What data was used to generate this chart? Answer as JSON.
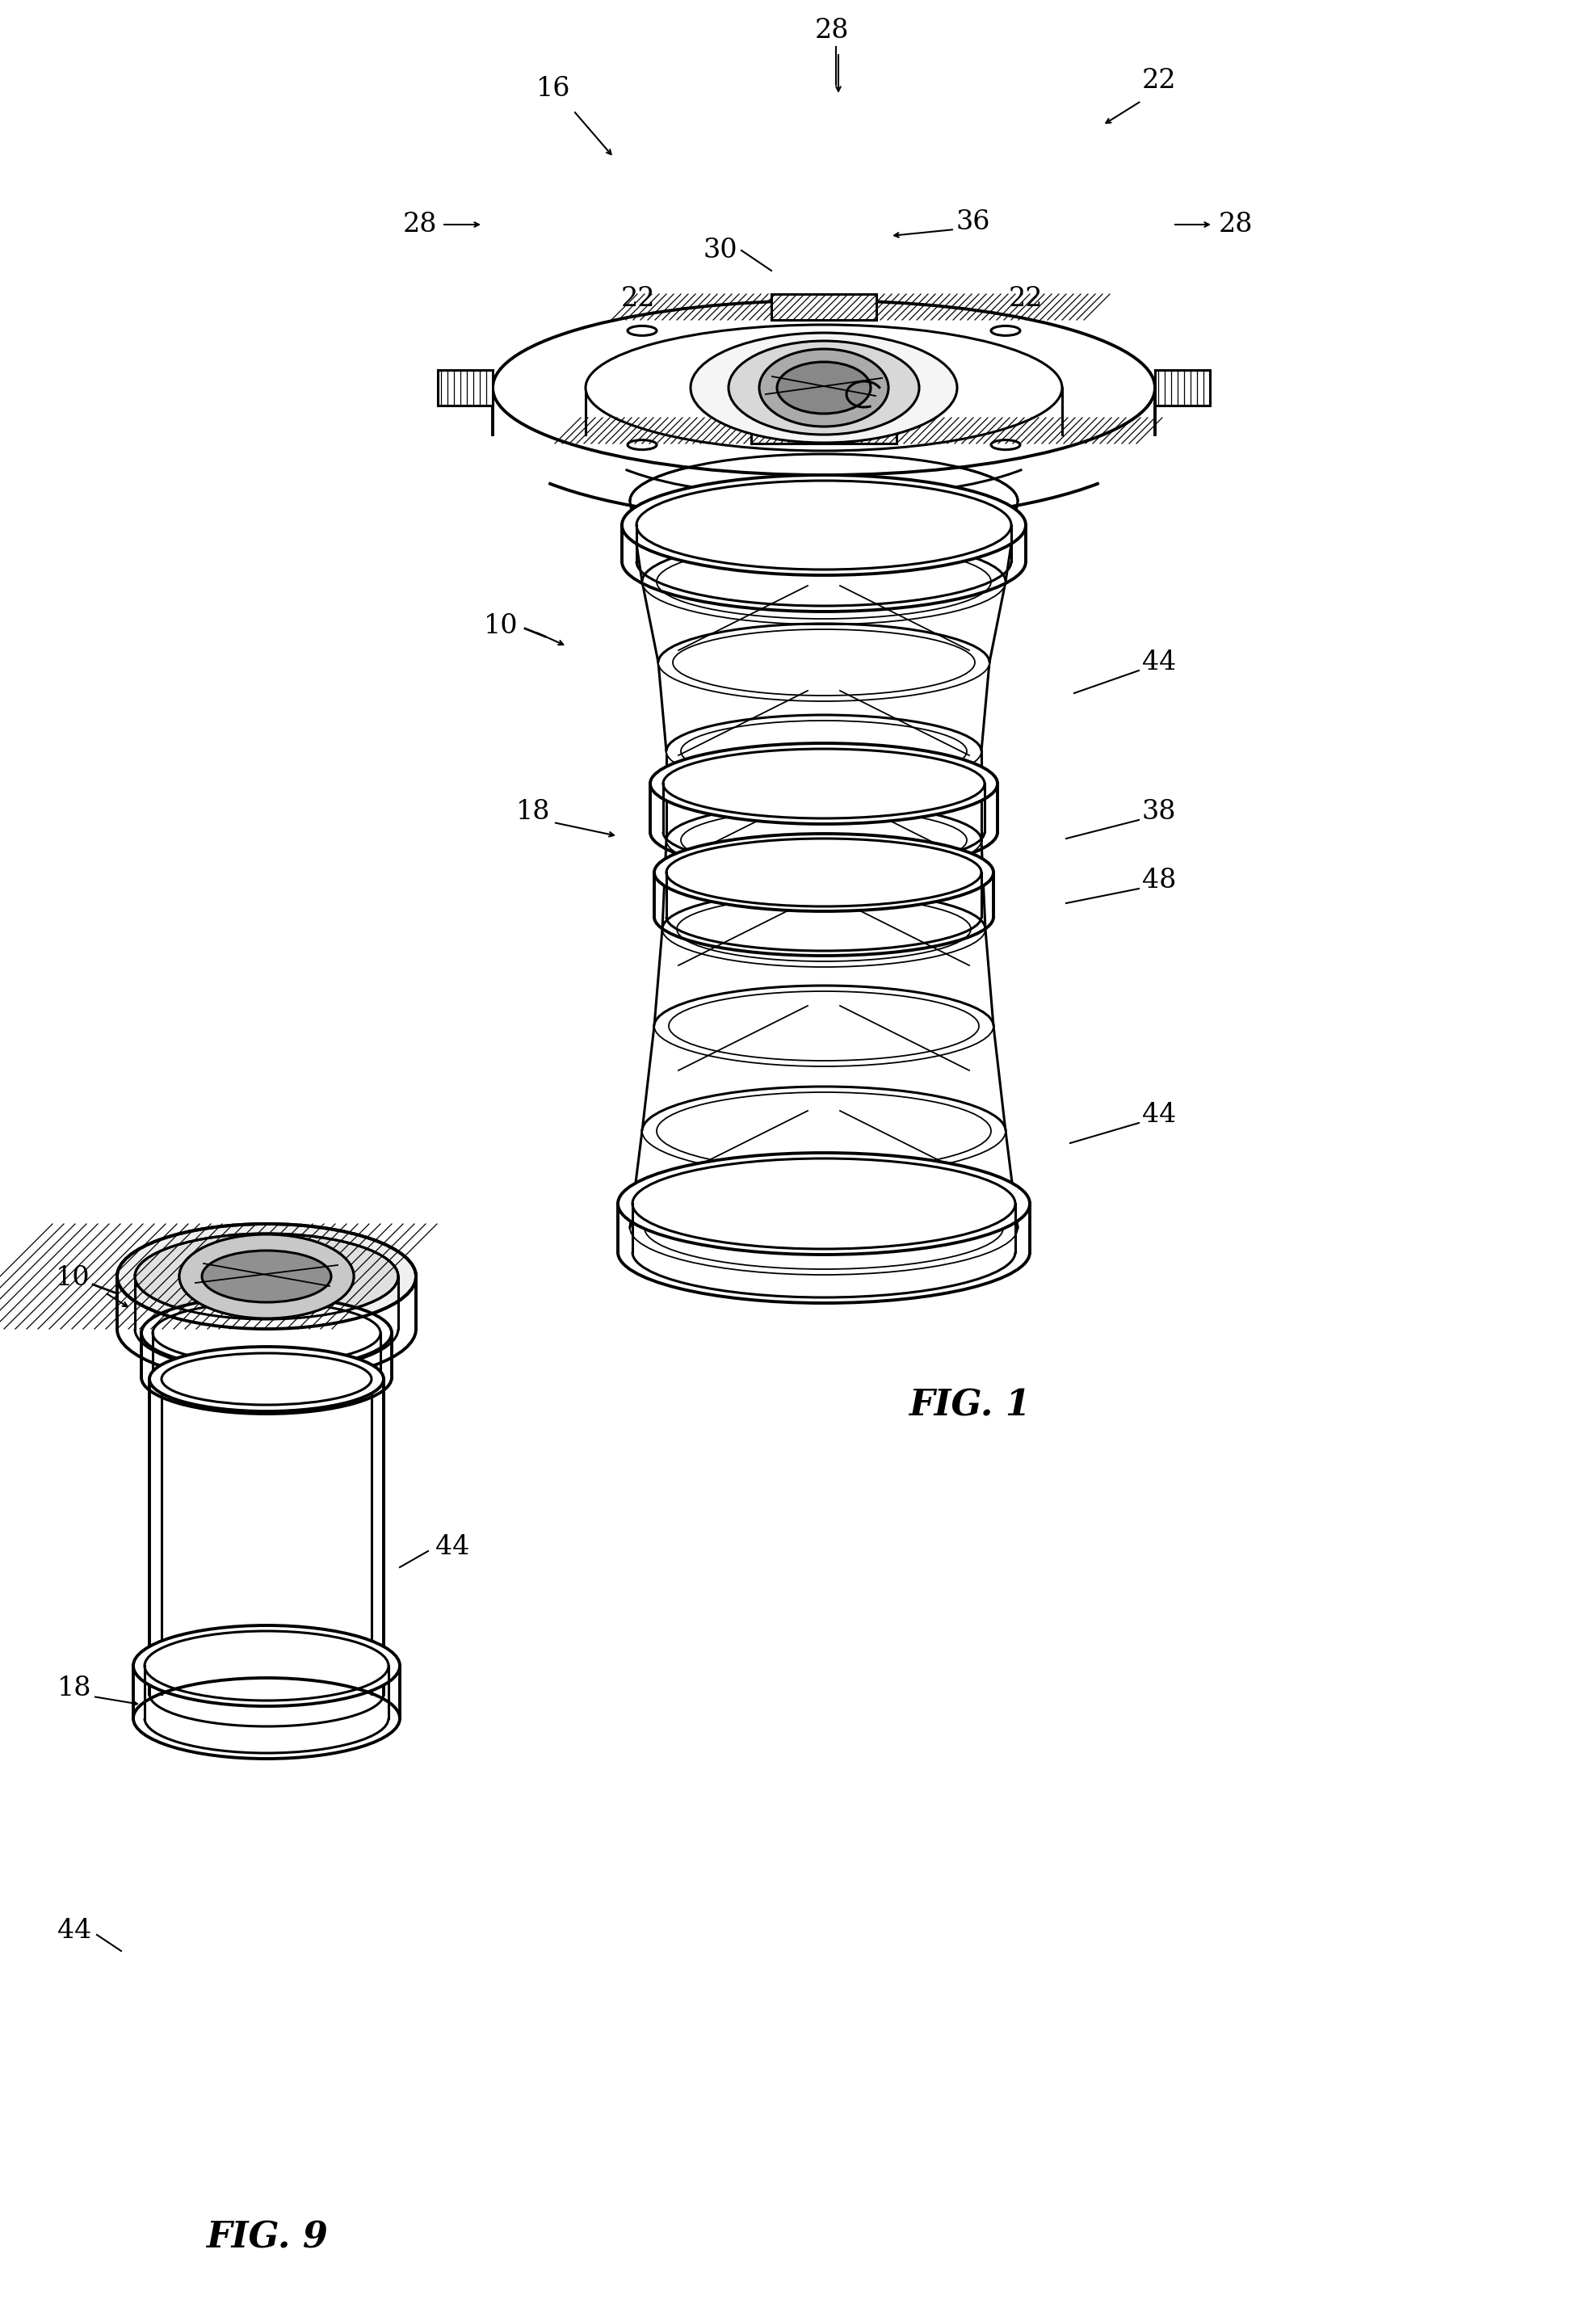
{
  "background_color": "#ffffff",
  "line_color": "#000000",
  "fig1_label": "FIG. 1",
  "fig9_label": "FIG. 9",
  "lw_main": 2.2,
  "lw_thin": 1.3,
  "lw_thick": 2.8,
  "ref_fontsize": 24,
  "fig_label_fontsize": 32
}
